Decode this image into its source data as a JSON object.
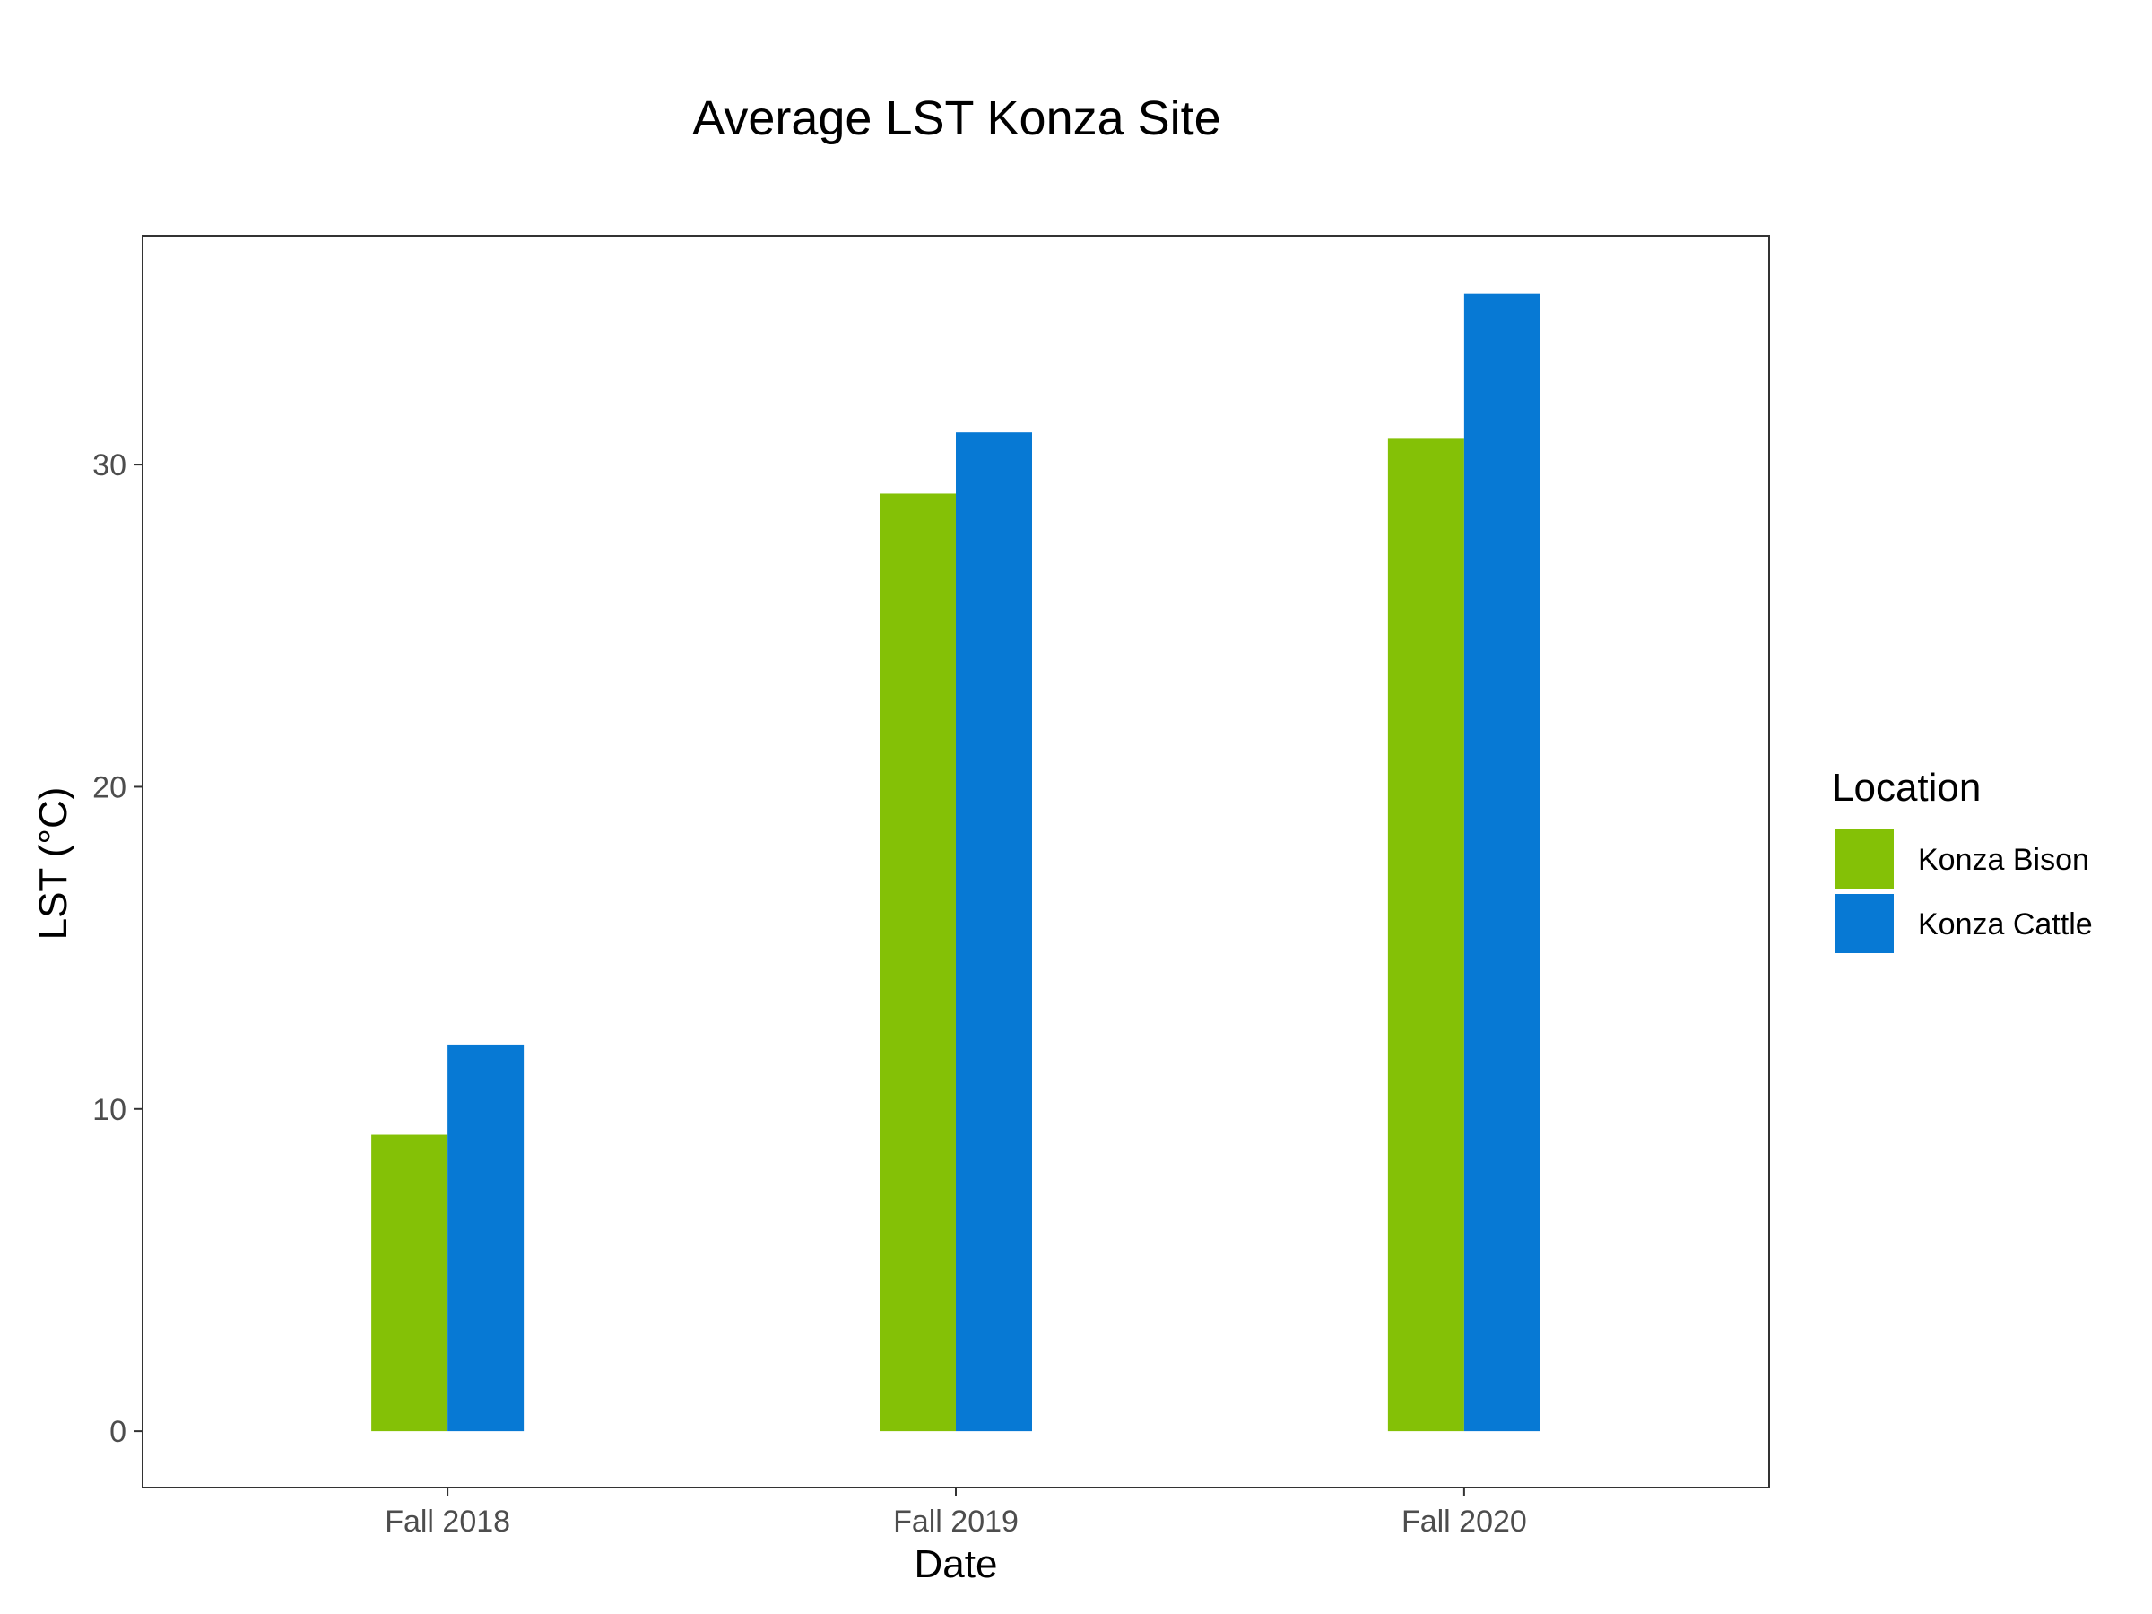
{
  "chart_data": {
    "type": "bar",
    "title": "Average LST Konza Site",
    "xlabel": "Date",
    "ylabel": "LST (°C)",
    "categories": [
      "Fall 2018",
      "Fall 2019",
      "Fall 2020"
    ],
    "series": [
      {
        "name": "Konza Bison",
        "values": [
          9.2,
          29.1,
          30.8
        ],
        "color": "#84c106"
      },
      {
        "name": "Konza Cattle",
        "values": [
          12.0,
          31.0,
          35.3
        ],
        "color": "#0779d4"
      }
    ],
    "yticks": [
      0,
      10,
      20,
      30
    ],
    "ylim": [
      -1.75,
      37.1
    ],
    "grid": false,
    "legend": {
      "title": "Location",
      "position": "right"
    }
  }
}
